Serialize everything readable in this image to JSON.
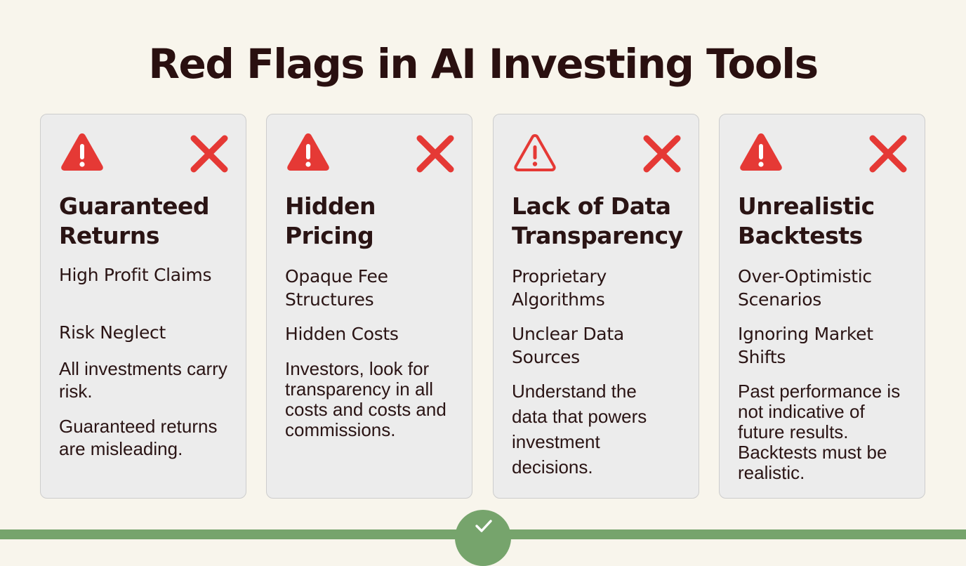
{
  "title": "Red Flags in AI Investing Tools",
  "colors": {
    "background": "#f8f5ec",
    "card": "#ececec",
    "alert_red": "#e53935",
    "text": "#2a1414",
    "accent_green": "#76a46c"
  },
  "cards": [
    {
      "heading": "Guaranteed Returns",
      "point_1": "High Profit Claims",
      "point_2": "Risk Neglect",
      "note_1": "All investments carry risk.",
      "note_2": "Guaranteed returns are misleading.",
      "alert_icon": "warning-triangle-icon",
      "flag_icon": "x-mark-icon"
    },
    {
      "heading": "Hidden Pricing",
      "point_1": "Opaque Fee Structures",
      "point_2": "Hidden Costs",
      "note_1": "Investors, look for transparency in all costs and costs and commissions.",
      "alert_icon": "warning-triangle-icon",
      "flag_icon": "x-mark-icon"
    },
    {
      "heading": "Lack of Data Transparency",
      "point_1": "Proprietary Algorithms",
      "point_2": "Unclear Data Sources",
      "note_1": "Understand the data that powers investment decisions.",
      "alert_icon": "warning-triangle-outline-icon",
      "flag_icon": "x-mark-icon"
    },
    {
      "heading": "Unrealistic Backtests",
      "point_1": "Over-Optimistic Scenarios",
      "point_2": "Ignoring Market Shifts",
      "note_1": "Past performance is not indicative of future results. Backtests must be realistic.",
      "alert_icon": "warning-triangle-icon",
      "flag_icon": "x-mark-icon"
    }
  ],
  "footer": {
    "badge_icon": "checkmark-icon"
  }
}
